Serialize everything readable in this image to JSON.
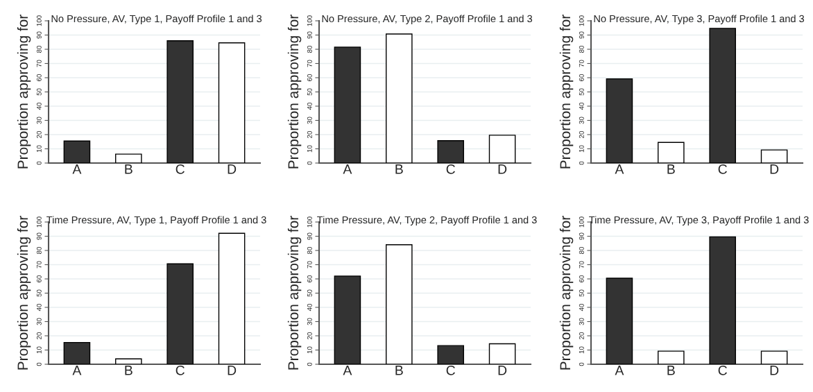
{
  "chart_data": [
    {
      "type": "bar",
      "title": "No Pressure, AV, Type 1, Payoff Profile 1 and 3",
      "ylabel": "Proportion approving for",
      "categories": [
        "A",
        "B",
        "C",
        "D"
      ],
      "values": [
        15.5,
        6.3,
        86,
        84.5
      ],
      "colors": [
        "#333333",
        "#ffffff",
        "#333333",
        "#ffffff"
      ],
      "ylim": [
        0,
        100
      ],
      "yticks": [
        0,
        10,
        20,
        30,
        40,
        50,
        60,
        70,
        80,
        90,
        100
      ],
      "grid": "y"
    },
    {
      "type": "bar",
      "title": "No Pressure, AV, Type 2, Payoff Profile 1 and 3",
      "ylabel": "Proportion approving for",
      "categories": [
        "A",
        "B",
        "C",
        "D"
      ],
      "values": [
        81.5,
        90.7,
        15.7,
        19.6
      ],
      "colors": [
        "#333333",
        "#ffffff",
        "#333333",
        "#ffffff"
      ],
      "ylim": [
        0,
        100
      ],
      "yticks": [
        0,
        10,
        20,
        30,
        40,
        50,
        60,
        70,
        80,
        90,
        100
      ],
      "grid": "y"
    },
    {
      "type": "bar",
      "title": "No Pressure, AV, Type 3, Payoff Profile 1 and 3",
      "ylabel": "Proportion approving for",
      "categories": [
        "A",
        "B",
        "C",
        "D"
      ],
      "values": [
        59.2,
        14.5,
        94.7,
        9.2
      ],
      "colors": [
        "#333333",
        "#ffffff",
        "#333333",
        "#ffffff"
      ],
      "ylim": [
        0,
        100
      ],
      "yticks": [
        0,
        10,
        20,
        30,
        40,
        50,
        60,
        70,
        80,
        90,
        100
      ],
      "grid": "y"
    },
    {
      "type": "bar",
      "title": "Time Pressure, AV, Type 1, Payoff Profile 1 and 3",
      "ylabel": "Proportion approving for",
      "categories": [
        "A",
        "B",
        "C",
        "D"
      ],
      "values": [
        15.3,
        3.8,
        70.6,
        92.1
      ],
      "colors": [
        "#333333",
        "#ffffff",
        "#333333",
        "#ffffff"
      ],
      "ylim": [
        0,
        100
      ],
      "yticks": [
        0,
        10,
        20,
        30,
        40,
        50,
        60,
        70,
        80,
        90,
        100
      ],
      "grid": "y"
    },
    {
      "type": "bar",
      "title": "Time Pressure, AV, Type 2, Payoff Profile 1 and 3",
      "ylabel": "Proportion approving for",
      "categories": [
        "A",
        "B",
        "C",
        "D"
      ],
      "values": [
        62,
        84,
        13.1,
        14.4
      ],
      "colors": [
        "#333333",
        "#ffffff",
        "#333333",
        "#ffffff"
      ],
      "ylim": [
        0,
        100
      ],
      "yticks": [
        0,
        10,
        20,
        30,
        40,
        50,
        60,
        70,
        80,
        90,
        100
      ],
      "grid": "y"
    },
    {
      "type": "bar",
      "title": "Time Pressure, AV, Type 3, Payoff Profile 1 and 3",
      "ylabel": "Proportion approving for",
      "categories": [
        "A",
        "B",
        "C",
        "D"
      ],
      "values": [
        60.5,
        9.2,
        89.6,
        9.2
      ],
      "colors": [
        "#333333",
        "#ffffff",
        "#333333",
        "#ffffff"
      ],
      "ylim": [
        0,
        100
      ],
      "yticks": [
        0,
        10,
        20,
        30,
        40,
        50,
        60,
        70,
        80,
        90,
        100
      ],
      "grid": "y"
    }
  ]
}
